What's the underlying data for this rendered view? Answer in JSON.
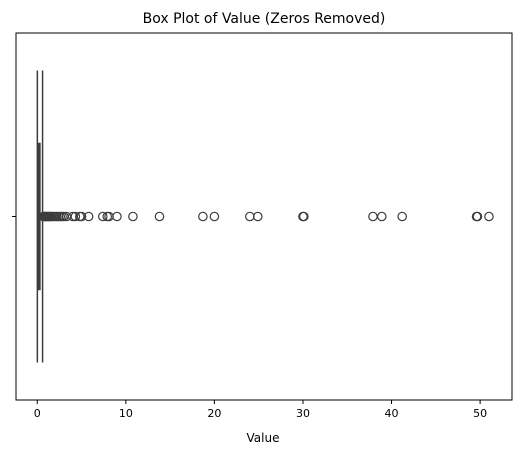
{
  "chart_data": {
    "type": "box",
    "title": "Box Plot of Value (Zeros Removed)",
    "xlabel": "Value",
    "ylabel": "",
    "xlim": [
      -2.4,
      53.6
    ],
    "xticks": [
      0,
      10,
      20,
      30,
      40,
      50
    ],
    "xtick_labels": [
      "0",
      "10",
      "20",
      "30",
      "40",
      "50"
    ],
    "yticks": [
      ""
    ],
    "grid": false,
    "colors": {
      "box_stroke": "#3d3d3d",
      "outlier_stroke": "#3d3d3d",
      "axis": "#000000"
    },
    "box": {
      "whisker_low": 0.01,
      "q1": 0.05,
      "median": 0.15,
      "q3": 0.3,
      "whisker_high": 0.6
    },
    "outliers": [
      0.7,
      0.8,
      0.9,
      1.0,
      1.1,
      1.2,
      1.3,
      1.4,
      1.5,
      1.6,
      1.8,
      2.0,
      2.2,
      2.4,
      2.6,
      2.8,
      3.0,
      3.3,
      4.0,
      4.3,
      4.8,
      5.0,
      5.8,
      7.4,
      7.9,
      8.1,
      9.0,
      10.8,
      13.8,
      18.7,
      20.0,
      24.0,
      24.9,
      30.0,
      30.1,
      37.9,
      38.9,
      41.2,
      49.6,
      49.7,
      51.0
    ]
  }
}
